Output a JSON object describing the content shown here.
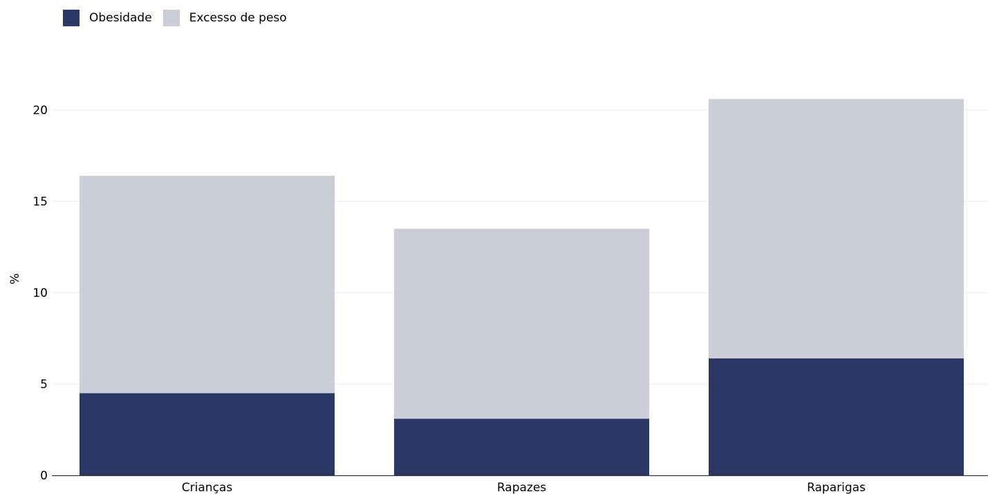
{
  "chart_data": {
    "type": "bar",
    "stacked": true,
    "categories": [
      "Crianças",
      "Rapazes",
      "Raparigas"
    ],
    "series": [
      {
        "name": "Obesidade",
        "values": [
          4.5,
          3.1,
          6.4
        ],
        "color": "#2b3764"
      },
      {
        "name": "Excesso de peso",
        "values": [
          11.9,
          10.4,
          14.2
        ],
        "color": "#cbcdd9"
      }
    ],
    "ylabel": "%",
    "ylim": [
      0,
      20.5
    ],
    "yticks": [
      0,
      5,
      10,
      15,
      20
    ],
    "grid": true,
    "legend_position": "top-left"
  }
}
